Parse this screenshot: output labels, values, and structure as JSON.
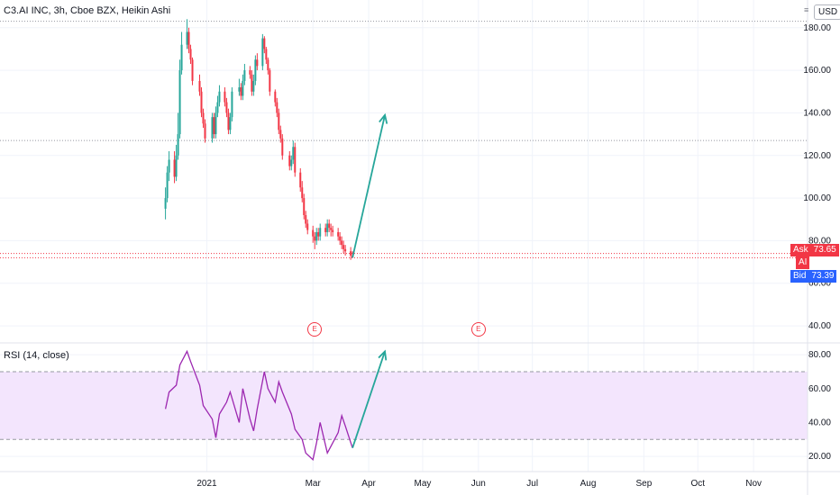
{
  "header": {
    "title": "C3.AI INC, 3h, Cboe BZX, Heikin Ashi"
  },
  "currency_button": "USD",
  "price_tags": {
    "ask_label": "Ask",
    "ask_value": "73.65",
    "symbol_label": "AI",
    "bid_label": "Bid",
    "bid_value": "73.39"
  },
  "earnings_badges": [
    {
      "label": "E",
      "date": "2021-03-02"
    },
    {
      "label": "E",
      "date": "2021-06-01"
    }
  ],
  "colors": {
    "up": "#26a69a",
    "down": "#f23645",
    "rsi_line": "#9c27b0",
    "rsi_band": "#f3e5fd",
    "arrow": "#26a69a",
    "grid": "#f0f3fa",
    "axis_text": "#131722"
  },
  "chart_data": [
    {
      "type": "candlestick",
      "title": "C3.AI INC, 3h, Cboe BZX, Heikin Ashi",
      "y_ticks": [
        "40.00",
        "60.00",
        "80.00",
        "100.00",
        "120.00",
        "140.00",
        "160.00",
        "180.00"
      ],
      "ylim": [
        32,
        193
      ],
      "x_ticks": [
        "2021",
        "Mar",
        "Apr",
        "May",
        "Jun",
        "Jul",
        "Aug",
        "Sep",
        "Oct",
        "Nov"
      ],
      "x_tick_dates": [
        "2021-01-01",
        "2021-03-01",
        "2021-04-01",
        "2021-05-01",
        "2021-06-01",
        "2021-07-01",
        "2021-08-01",
        "2021-09-01",
        "2021-10-01",
        "2021-11-01"
      ],
      "xlim": [
        "2020-09-08",
        "2021-12-01"
      ],
      "horizontal_levels": [
        183,
        127,
        74,
        72
      ],
      "grid": true,
      "series": [
        {
          "dates": [
            "2020-12-09",
            "2020-12-10",
            "2020-12-11",
            "2020-12-14",
            "2020-12-15",
            "2020-12-16",
            "2020-12-17",
            "2020-12-18",
            "2020-12-21",
            "2020-12-22",
            "2020-12-23",
            "2020-12-24",
            "2020-12-28",
            "2020-12-29",
            "2020-12-30",
            "2020-12-31",
            "2021-01-04",
            "2021-01-05",
            "2021-01-06",
            "2021-01-07",
            "2021-01-08",
            "2021-01-11",
            "2021-01-12",
            "2021-01-13",
            "2021-01-14",
            "2021-01-15",
            "2021-01-19",
            "2021-01-20",
            "2021-01-21",
            "2021-01-22",
            "2021-01-25",
            "2021-01-26",
            "2021-01-27",
            "2021-01-28",
            "2021-01-29",
            "2021-02-01",
            "2021-02-02",
            "2021-02-03",
            "2021-02-04",
            "2021-02-05",
            "2021-02-08",
            "2021-02-09",
            "2021-02-10",
            "2021-02-11",
            "2021-02-12",
            "2021-02-16",
            "2021-02-17",
            "2021-02-18",
            "2021-02-19",
            "2021-02-22",
            "2021-02-23",
            "2021-02-24",
            "2021-02-25",
            "2021-02-26",
            "2021-03-01",
            "2021-03-02",
            "2021-03-03",
            "2021-03-04",
            "2021-03-05",
            "2021-03-08",
            "2021-03-09",
            "2021-03-10",
            "2021-03-11",
            "2021-03-12",
            "2021-03-15",
            "2021-03-16",
            "2021-03-17",
            "2021-03-18",
            "2021-03-19",
            "2021-03-22",
            "2021-03-23"
          ],
          "open": [
            95,
            100,
            112,
            118,
            110,
            120,
            130,
            160,
            172,
            178,
            170,
            165,
            155,
            150,
            140,
            135,
            128,
            138,
            130,
            140,
            145,
            150,
            145,
            140,
            132,
            138,
            150,
            152,
            148,
            155,
            160,
            158,
            150,
            155,
            165,
            162,
            175,
            170,
            165,
            160,
            150,
            145,
            140,
            132,
            128,
            120,
            115,
            118,
            124,
            112,
            105,
            100,
            92,
            88,
            85,
            82,
            80,
            84,
            82,
            86,
            84,
            88,
            86,
            85,
            84,
            82,
            80,
            78,
            76,
            75,
            73
          ],
          "close": [
            100,
            112,
            118,
            110,
            120,
            130,
            160,
            172,
            178,
            170,
            165,
            155,
            150,
            140,
            135,
            128,
            138,
            130,
            140,
            145,
            150,
            145,
            140,
            132,
            138,
            150,
            152,
            148,
            155,
            160,
            158,
            150,
            155,
            165,
            162,
            175,
            170,
            165,
            160,
            150,
            145,
            140,
            132,
            128,
            120,
            115,
            118,
            124,
            112,
            105,
            100,
            92,
            88,
            85,
            82,
            80,
            84,
            82,
            86,
            84,
            88,
            86,
            85,
            84,
            82,
            80,
            78,
            76,
            75,
            73,
            72
          ],
          "high": [
            105,
            115,
            122,
            122,
            125,
            140,
            165,
            178,
            184,
            180,
            172,
            166,
            158,
            152,
            142,
            137,
            140,
            140,
            143,
            148,
            153,
            152,
            147,
            142,
            140,
            152,
            156,
            154,
            158,
            163,
            162,
            160,
            158,
            167,
            168,
            177,
            176,
            171,
            166,
            161,
            151,
            147,
            142,
            134,
            130,
            122,
            120,
            127,
            126,
            114,
            108,
            102,
            94,
            90,
            87,
            84,
            86,
            86,
            88,
            88,
            90,
            90,
            88,
            87,
            86,
            84,
            82,
            80,
            78,
            77,
            75
          ],
          "low": [
            90,
            98,
            108,
            107,
            108,
            118,
            128,
            158,
            170,
            168,
            163,
            153,
            148,
            138,
            133,
            126,
            126,
            128,
            128,
            138,
            143,
            143,
            138,
            130,
            130,
            136,
            148,
            146,
            146,
            153,
            156,
            148,
            148,
            153,
            160,
            160,
            168,
            163,
            158,
            148,
            143,
            138,
            130,
            126,
            118,
            113,
            113,
            116,
            110,
            103,
            98,
            90,
            86,
            83,
            79,
            76,
            78,
            80,
            80,
            82,
            82,
            84,
            82,
            82,
            80,
            78,
            76,
            74,
            73,
            71,
            72
          ]
        }
      ]
    },
    {
      "type": "line",
      "title": "RSI (14, close)",
      "y_ticks": [
        "20.00",
        "40.00",
        "60.00",
        "80.00"
      ],
      "ylim": [
        11,
        87
      ],
      "band": [
        30,
        70
      ],
      "series": [
        {
          "name": "RSI (14, close)",
          "dates": [
            "2020-12-09",
            "2020-12-11",
            "2020-12-15",
            "2020-12-17",
            "2020-12-21",
            "2020-12-23",
            "2020-12-28",
            "2020-12-30",
            "2021-01-04",
            "2021-01-06",
            "2021-01-08",
            "2021-01-12",
            "2021-01-14",
            "2021-01-19",
            "2021-01-21",
            "2021-01-25",
            "2021-01-27",
            "2021-01-29",
            "2021-02-02",
            "2021-02-04",
            "2021-02-08",
            "2021-02-10",
            "2021-02-12",
            "2021-02-17",
            "2021-02-19",
            "2021-02-23",
            "2021-02-25",
            "2021-03-01",
            "2021-03-03",
            "2021-03-05",
            "2021-03-09",
            "2021-03-11",
            "2021-03-15",
            "2021-03-17",
            "2021-03-19",
            "2021-03-23"
          ],
          "values": [
            48,
            58,
            62,
            74,
            82,
            76,
            62,
            50,
            42,
            31,
            45,
            52,
            58,
            40,
            60,
            42,
            35,
            48,
            70,
            60,
            52,
            64,
            58,
            45,
            36,
            30,
            22,
            18,
            28,
            40,
            22,
            26,
            34,
            44,
            38,
            25
          ]
        }
      ]
    }
  ],
  "projection_arrows": [
    {
      "from_date": "2021-03-23",
      "from_value": 72,
      "to_date": "2021-04-10",
      "to_value": 139
    },
    {
      "from_date": "2021-03-23",
      "from_value": 25,
      "to_date": "2021-04-10",
      "to_value": 82
    }
  ]
}
